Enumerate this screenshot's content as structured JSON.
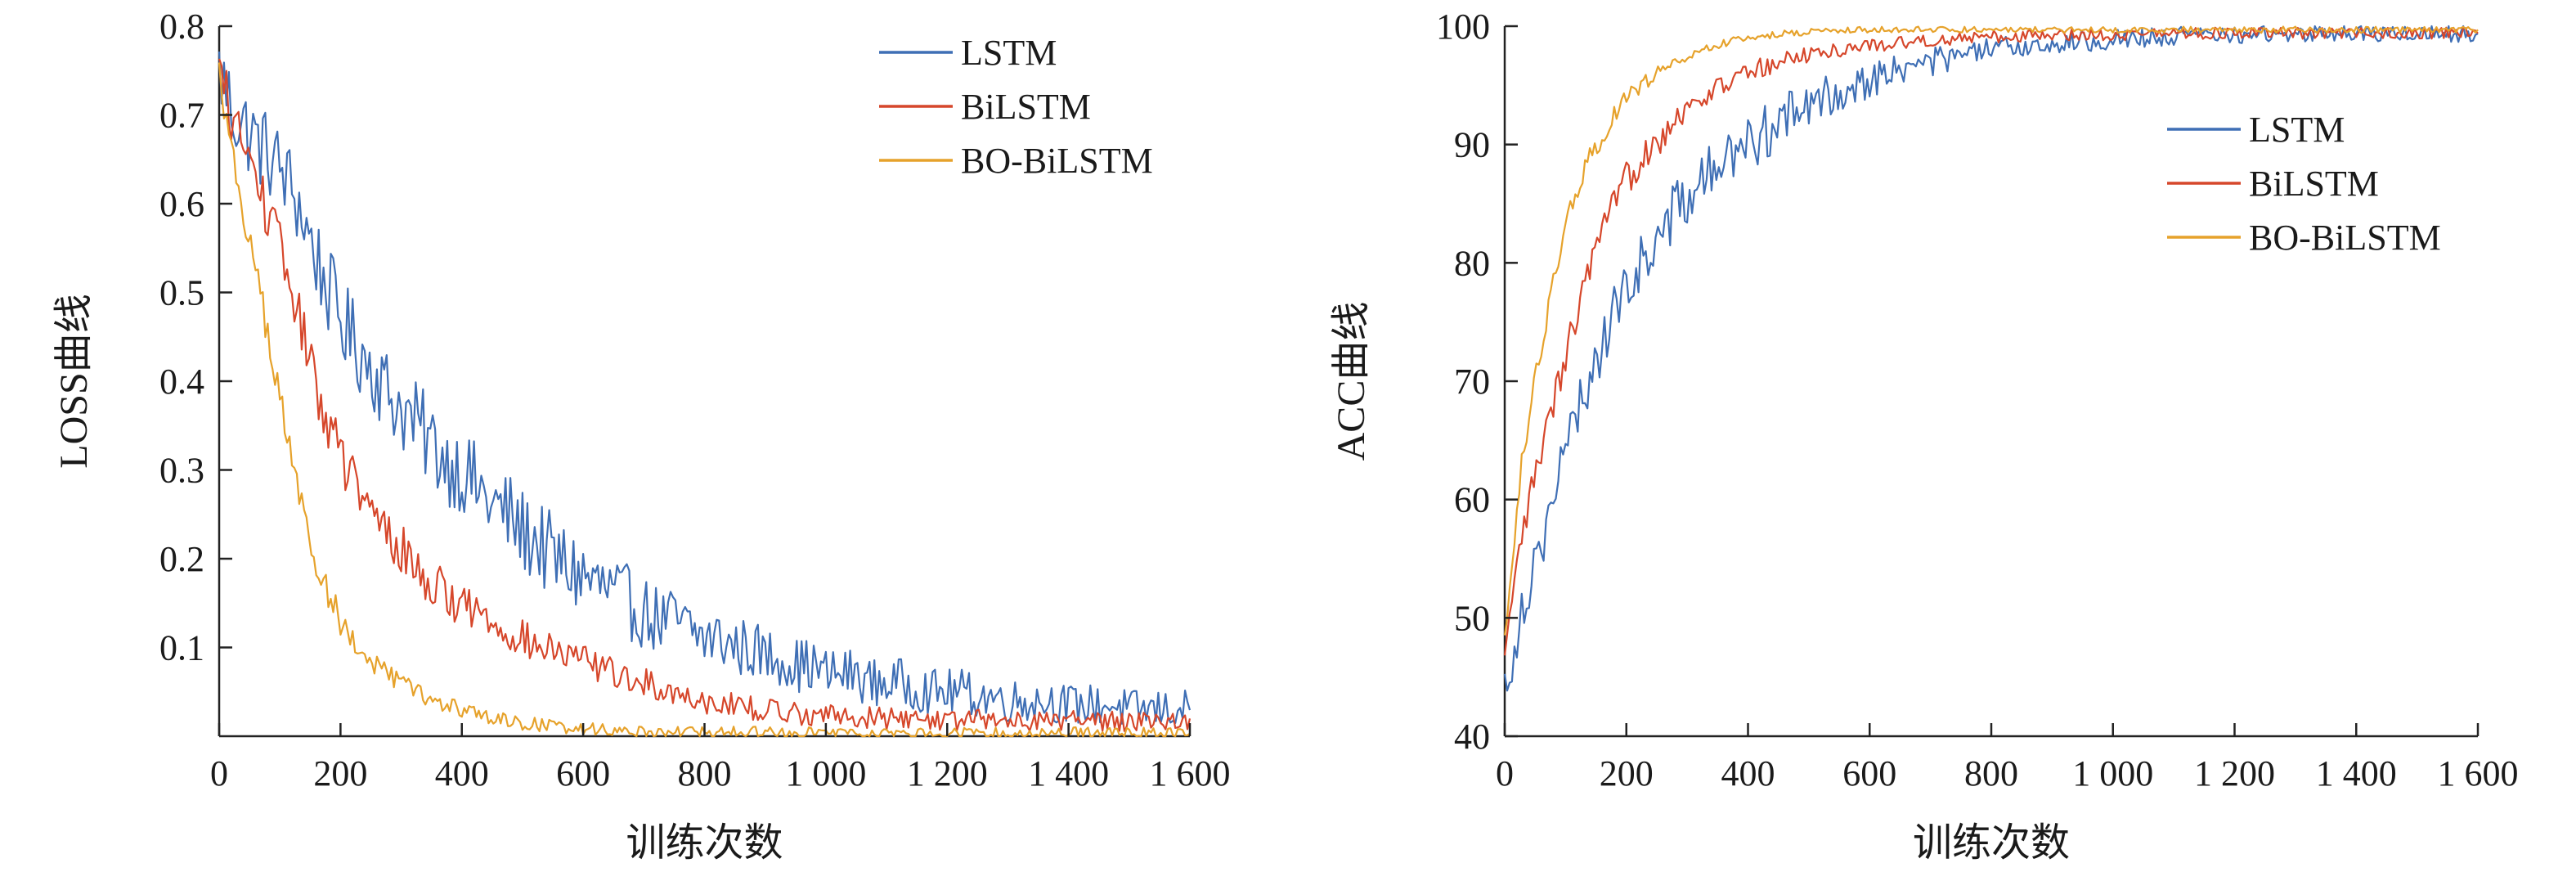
{
  "chart_data": [
    {
      "type": "line",
      "ylabel": "LOSS曲线",
      "xlabel": "训练次数",
      "xlim": [
        0,
        1600
      ],
      "ylim": [
        0,
        0.8
      ],
      "xticks": [
        0,
        200,
        400,
        600,
        800,
        1000,
        1200,
        1400,
        1600
      ],
      "xtick_labels": [
        "0",
        "200",
        "400",
        "600",
        "800",
        "1 000",
        "1 200",
        "1 400",
        "1 600"
      ],
      "yticks": [
        0.1,
        0.2,
        0.3,
        0.4,
        0.5,
        0.6,
        0.7,
        0.8
      ],
      "ytick_labels": [
        "0.1",
        "0.2",
        "0.3",
        "0.4",
        "0.5",
        "0.6",
        "0.7",
        "0.8"
      ],
      "legend_position": "top-right",
      "grid": false,
      "series": [
        {
          "name": "LSTM",
          "color": "#3f6fb5",
          "x": [
            0,
            25,
            50,
            75,
            100,
            125,
            150,
            175,
            200,
            225,
            250,
            275,
            300,
            325,
            350,
            375,
            400,
            425,
            450,
            475,
            500,
            525,
            550,
            575,
            600,
            625,
            650,
            675,
            700,
            725,
            750,
            775,
            800,
            825,
            850,
            875,
            900,
            925,
            950,
            975,
            1000,
            1025,
            1050,
            1075,
            1100,
            1125,
            1150,
            1175,
            1200,
            1225,
            1250,
            1275,
            1300,
            1325,
            1350,
            1375,
            1400,
            1425,
            1450,
            1475,
            1500,
            1525,
            1550,
            1575,
            1600
          ],
          "y": [
            0.75,
            0.7,
            0.68,
            0.66,
            0.64,
            0.61,
            0.56,
            0.51,
            0.47,
            0.44,
            0.42,
            0.39,
            0.37,
            0.35,
            0.33,
            0.31,
            0.3,
            0.28,
            0.26,
            0.25,
            0.23,
            0.22,
            0.2,
            0.19,
            0.18,
            0.17,
            0.16,
            0.15,
            0.14,
            0.13,
            0.13,
            0.12,
            0.11,
            0.11,
            0.1,
            0.1,
            0.09,
            0.09,
            0.08,
            0.08,
            0.07,
            0.07,
            0.07,
            0.06,
            0.06,
            0.06,
            0.055,
            0.05,
            0.05,
            0.05,
            0.045,
            0.045,
            0.04,
            0.04,
            0.04,
            0.04,
            0.035,
            0.035,
            0.035,
            0.035,
            0.03,
            0.03,
            0.03,
            0.03,
            0.03
          ],
          "noise": 0.05
        },
        {
          "name": "BiLSTM",
          "color": "#d6472b",
          "x": [
            0,
            25,
            50,
            75,
            100,
            125,
            150,
            175,
            200,
            225,
            250,
            275,
            300,
            325,
            350,
            375,
            400,
            425,
            450,
            475,
            500,
            525,
            550,
            575,
            600,
            625,
            650,
            675,
            700,
            725,
            750,
            775,
            800,
            825,
            850,
            875,
            900,
            925,
            950,
            975,
            1000,
            1025,
            1050,
            1075,
            1100,
            1125,
            1150,
            1175,
            1200,
            1225,
            1250,
            1275,
            1300,
            1325,
            1350,
            1375,
            1400,
            1425,
            1450,
            1475,
            1500,
            1525,
            1550,
            1575,
            1600
          ],
          "y": [
            0.75,
            0.69,
            0.65,
            0.6,
            0.55,
            0.49,
            0.42,
            0.36,
            0.32,
            0.28,
            0.25,
            0.23,
            0.21,
            0.19,
            0.17,
            0.16,
            0.15,
            0.14,
            0.13,
            0.12,
            0.11,
            0.1,
            0.095,
            0.09,
            0.085,
            0.08,
            0.07,
            0.065,
            0.06,
            0.055,
            0.05,
            0.045,
            0.04,
            0.038,
            0.035,
            0.032,
            0.03,
            0.028,
            0.026,
            0.025,
            0.024,
            0.023,
            0.022,
            0.021,
            0.02,
            0.02,
            0.02,
            0.019,
            0.019,
            0.018,
            0.018,
            0.018,
            0.018,
            0.018,
            0.018,
            0.018,
            0.018,
            0.018,
            0.018,
            0.018,
            0.018,
            0.018,
            0.018,
            0.018,
            0.02
          ],
          "noise": 0.03
        },
        {
          "name": "BO-BiLSTM",
          "color": "#e6a22b",
          "x": [
            0,
            25,
            50,
            75,
            100,
            125,
            150,
            175,
            200,
            225,
            250,
            275,
            300,
            325,
            350,
            375,
            400,
            425,
            450,
            475,
            500,
            525,
            550,
            575,
            600,
            625,
            650,
            675,
            700,
            725,
            750,
            775,
            800,
            825,
            850,
            875,
            900,
            925,
            950,
            975,
            1000,
            1025,
            1050,
            1075,
            1100,
            1125,
            1150,
            1175,
            1200,
            1225,
            1250,
            1275,
            1300,
            1325,
            1350,
            1375,
            1400,
            1425,
            1450,
            1475,
            1500,
            1525,
            1550,
            1575,
            1600
          ],
          "y": [
            0.75,
            0.64,
            0.56,
            0.47,
            0.38,
            0.29,
            0.22,
            0.17,
            0.13,
            0.1,
            0.085,
            0.07,
            0.06,
            0.05,
            0.04,
            0.035,
            0.03,
            0.025,
            0.02,
            0.018,
            0.015,
            0.013,
            0.011,
            0.01,
            0.009,
            0.008,
            0.007,
            0.006,
            0.006,
            0.005,
            0.005,
            0.005,
            0.004,
            0.004,
            0.004,
            0.004,
            0.003,
            0.003,
            0.003,
            0.003,
            0.003,
            0.003,
            0.003,
            0.003,
            0.003,
            0.003,
            0.003,
            0.003,
            0.003,
            0.003,
            0.003,
            0.003,
            0.003,
            0.003,
            0.003,
            0.003,
            0.003,
            0.003,
            0.003,
            0.003,
            0.003,
            0.003,
            0.003,
            0.003,
            0.003
          ],
          "noise": 0.02
        }
      ]
    },
    {
      "type": "line",
      "ylabel": "ACC曲线",
      "xlabel": "训练次数",
      "xlim": [
        0,
        1600
      ],
      "ylim": [
        40,
        100
      ],
      "xticks": [
        0,
        200,
        400,
        600,
        800,
        1000,
        1200,
        1400,
        1600
      ],
      "xtick_labels": [
        "0",
        "200",
        "400",
        "600",
        "800",
        "1 000",
        "1 200",
        "1 400",
        "1 600"
      ],
      "yticks": [
        40,
        50,
        60,
        70,
        80,
        90,
        100
      ],
      "ytick_labels": [
        "40",
        "50",
        "60",
        "70",
        "80",
        "90",
        "100"
      ],
      "legend_position": "right",
      "grid": false,
      "series": [
        {
          "name": "LSTM",
          "color": "#3f6fb5",
          "x": [
            0,
            25,
            50,
            75,
            100,
            125,
            150,
            175,
            200,
            225,
            250,
            275,
            300,
            325,
            350,
            375,
            400,
            425,
            450,
            475,
            500,
            525,
            550,
            575,
            600,
            625,
            650,
            675,
            700,
            725,
            750,
            775,
            800,
            825,
            850,
            875,
            900,
            925,
            950,
            975,
            1000,
            1025,
            1050,
            1075,
            1100,
            1125,
            1150,
            1175,
            1200,
            1225,
            1250,
            1275,
            1300,
            1325,
            1350,
            1375,
            1400,
            1425,
            1450,
            1475,
            1500,
            1525,
            1550,
            1575,
            1600
          ],
          "y": [
            44,
            50,
            55,
            59,
            64,
            68,
            72,
            75,
            78,
            80,
            82,
            84,
            85.5,
            87,
            88,
            89,
            90,
            91,
            92,
            92.5,
            93,
            94,
            94.5,
            95,
            95.5,
            96,
            96.3,
            96.6,
            97,
            97.2,
            97.5,
            97.7,
            98,
            98.1,
            98.3,
            98.4,
            98.5,
            98.6,
            98.7,
            98.8,
            98.9,
            99,
            99,
            99.1,
            99.1,
            99.2,
            99.2,
            99.2,
            99.3,
            99.3,
            99.3,
            99.3,
            99.3,
            99.4,
            99.4,
            99.4,
            99.4,
            99.4,
            99.4,
            99.4,
            99.4,
            99.4,
            99.4,
            99.4,
            99.4
          ],
          "noise": 2.5
        },
        {
          "name": "BiLSTM",
          "color": "#d6472b",
          "x": [
            0,
            25,
            50,
            75,
            100,
            125,
            150,
            175,
            200,
            225,
            250,
            275,
            300,
            325,
            350,
            375,
            400,
            425,
            450,
            475,
            500,
            525,
            550,
            575,
            600,
            625,
            650,
            675,
            700,
            725,
            750,
            775,
            800,
            825,
            850,
            875,
            900,
            925,
            950,
            975,
            1000,
            1025,
            1050,
            1075,
            1100,
            1125,
            1150,
            1175,
            1200,
            1225,
            1250,
            1275,
            1300,
            1325,
            1350,
            1375,
            1400,
            1425,
            1450,
            1475,
            1500,
            1525,
            1550,
            1575,
            1600
          ],
          "y": [
            46,
            56,
            62,
            67,
            72,
            77,
            81,
            84,
            87,
            89,
            90.5,
            92,
            93,
            94,
            94.8,
            95.5,
            96,
            96.5,
            97,
            97.3,
            97.6,
            97.8,
            98,
            98.2,
            98.4,
            98.5,
            98.6,
            98.7,
            98.8,
            98.9,
            99,
            99,
            99.1,
            99.1,
            99.2,
            99.2,
            99.2,
            99.3,
            99.3,
            99.3,
            99.3,
            99.3,
            99.4,
            99.4,
            99.4,
            99.4,
            99.4,
            99.4,
            99.4,
            99.4,
            99.4,
            99.4,
            99.4,
            99.4,
            99.4,
            99.4,
            99.4,
            99.4,
            99.4,
            99.4,
            99.4,
            99.4,
            99.4,
            99.4,
            99.4
          ],
          "noise": 1.6
        },
        {
          "name": "BO-BiLSTM",
          "color": "#e6a22b",
          "x": [
            0,
            25,
            50,
            75,
            100,
            125,
            150,
            175,
            200,
            225,
            250,
            275,
            300,
            325,
            350,
            375,
            400,
            425,
            450,
            475,
            500,
            525,
            550,
            575,
            600,
            625,
            650,
            675,
            700,
            725,
            750,
            775,
            800,
            825,
            850,
            875,
            900,
            925,
            950,
            975,
            1000,
            1025,
            1050,
            1075,
            1100,
            1125,
            1150,
            1175,
            1200,
            1225,
            1250,
            1275,
            1300,
            1325,
            1350,
            1375,
            1400,
            1425,
            1450,
            1475,
            1500,
            1525,
            1550,
            1575,
            1600
          ],
          "y": [
            48,
            62,
            70,
            77,
            83,
            87,
            90,
            92,
            94,
            95,
            96,
            96.8,
            97.4,
            98,
            98.4,
            98.7,
            99,
            99.2,
            99.3,
            99.4,
            99.5,
            99.6,
            99.6,
            99.7,
            99.7,
            99.7,
            99.7,
            99.7,
            99.7,
            99.7,
            99.7,
            99.7,
            99.7,
            99.7,
            99.7,
            99.7,
            99.7,
            99.7,
            99.7,
            99.7,
            99.7,
            99.7,
            99.7,
            99.7,
            99.7,
            99.7,
            99.7,
            99.7,
            99.7,
            99.7,
            99.7,
            99.7,
            99.7,
            99.7,
            99.7,
            99.7,
            99.7,
            99.7,
            99.7,
            99.7,
            99.7,
            99.7,
            99.7,
            99.7,
            99.7
          ],
          "noise": 1.0
        }
      ]
    }
  ]
}
